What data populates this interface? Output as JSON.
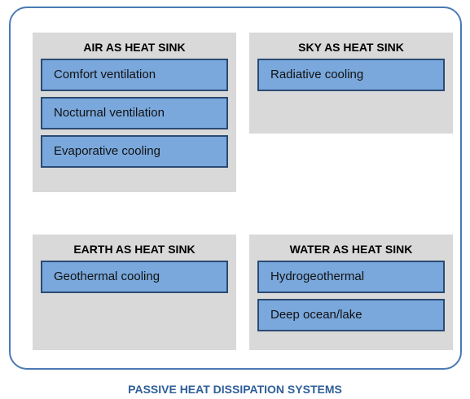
{
  "title": "PASSIVE HEAT DISSIPATION SYSTEMS",
  "groups": [
    {
      "title": "AIR AS HEAT SINK",
      "items": [
        "Comfort ventilation",
        "Nocturnal ventilation",
        "Evaporative cooling"
      ]
    },
    {
      "title": "SKY AS HEAT SINK",
      "items": [
        "Radiative cooling"
      ]
    },
    {
      "title": "EARTH AS HEAT SINK",
      "items": [
        "Geothermal cooling"
      ]
    },
    {
      "title": "WATER AS HEAT SINK",
      "items": [
        "Hydrogeothermal",
        "Deep ocean/lake"
      ]
    }
  ]
}
